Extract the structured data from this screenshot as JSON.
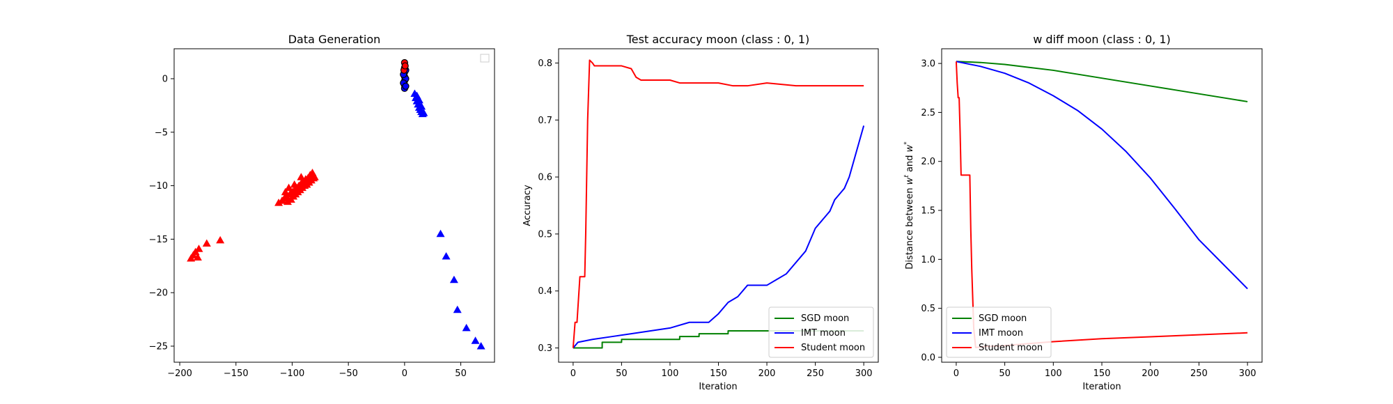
{
  "chart_data": [
    {
      "type": "scatter",
      "title": "Data Generation",
      "xlabel": "",
      "ylabel": "",
      "xlim": [
        -205,
        80
      ],
      "ylim": [
        -26.5,
        2.8
      ],
      "xticks": [
        -200,
        -150,
        -100,
        -50,
        0,
        50
      ],
      "yticks": [
        -25,
        -20,
        -15,
        -10,
        -5,
        0
      ],
      "xtick_labels": [
        "−200",
        "−150",
        "−100",
        "−50",
        "0",
        "50"
      ],
      "ytick_labels": [
        "−25",
        "−20",
        "−15",
        "−10",
        "−5",
        "0"
      ],
      "legend": "top-right (empty)",
      "series": [
        {
          "color": "#ff0000",
          "marker": "triangle",
          "points": [
            [
              -190,
              -16.8
            ],
            [
              -188,
              -16.5
            ],
            [
              -186,
              -16.2
            ],
            [
              -184,
              -16.7
            ],
            [
              -183,
              -15.9
            ],
            [
              -176,
              -15.4
            ],
            [
              -164,
              -15.1
            ],
            [
              -112,
              -11.6
            ],
            [
              -109,
              -11.4
            ],
            [
              -107,
              -11.2
            ],
            [
              -105,
              -11.0
            ],
            [
              -104,
              -11.5
            ],
            [
              -102,
              -10.8
            ],
            [
              -101,
              -11.3
            ],
            [
              -100,
              -10.6
            ],
            [
              -99,
              -11.0
            ],
            [
              -98,
              -10.4
            ],
            [
              -97,
              -10.8
            ],
            [
              -96,
              -10.2
            ],
            [
              -95,
              -10.6
            ],
            [
              -94,
              -10.0
            ],
            [
              -93,
              -10.4
            ],
            [
              -92,
              -9.8
            ],
            [
              -91,
              -10.2
            ],
            [
              -90,
              -9.6
            ],
            [
              -89,
              -10.0
            ],
            [
              -88,
              -9.4
            ],
            [
              -87,
              -9.9
            ],
            [
              -86,
              -9.3
            ],
            [
              -85,
              -9.7
            ],
            [
              -84,
              -9.0
            ],
            [
              -83,
              -9.5
            ],
            [
              -82,
              -8.8
            ],
            [
              -81,
              -9.3
            ],
            [
              -80,
              -9.2
            ],
            [
              -103,
              -10.2
            ],
            [
              -98,
              -9.9
            ],
            [
              -92,
              -9.2
            ],
            [
              -106,
              -10.6
            ]
          ]
        },
        {
          "color": "#0000ff",
          "marker": "triangle",
          "points": [
            [
              9,
              -1.4
            ],
            [
              10,
              -1.8
            ],
            [
              11,
              -2.1
            ],
            [
              12,
              -2.4
            ],
            [
              13,
              -2.7
            ],
            [
              14,
              -2.9
            ],
            [
              15,
              -3.1
            ],
            [
              16,
              -3.3
            ],
            [
              17,
              -3.2
            ],
            [
              13,
              -2.0
            ],
            [
              15,
              -2.6
            ],
            [
              11,
              -1.6
            ],
            [
              32,
              -14.5
            ],
            [
              37,
              -16.6
            ],
            [
              44,
              -18.8
            ],
            [
              47,
              -21.6
            ],
            [
              55,
              -23.3
            ],
            [
              63,
              -24.5
            ],
            [
              68,
              -25.0
            ]
          ]
        },
        {
          "color": "#0000ff",
          "marker": "circle",
          "points": [
            [
              0,
              1.0
            ],
            [
              0,
              0.6
            ],
            [
              0,
              0.2
            ],
            [
              0,
              -0.2
            ],
            [
              0,
              -0.6
            ],
            [
              0,
              -0.9
            ],
            [
              1,
              0.8
            ],
            [
              1,
              0.0
            ],
            [
              -1,
              0.4
            ],
            [
              -1,
              -0.4
            ],
            [
              1,
              -0.7
            ]
          ]
        },
        {
          "color": "#ff0000",
          "marker": "circle",
          "points": [
            [
              0,
              1.5
            ],
            [
              0,
              1.0
            ],
            [
              -0.5,
              0.8
            ],
            [
              0.5,
              1.2
            ]
          ]
        }
      ]
    },
    {
      "type": "line",
      "title": "Test accuracy moon (class : 0, 1)",
      "xlabel": "Iteration",
      "ylabel": "Accuracy",
      "xlim": [
        -15,
        315
      ],
      "ylim": [
        0.275,
        0.825
      ],
      "xticks": [
        0,
        50,
        100,
        150,
        200,
        250,
        300
      ],
      "yticks": [
        0.3,
        0.4,
        0.5,
        0.6,
        0.7,
        0.8
      ],
      "xtick_labels": [
        "0",
        "50",
        "100",
        "150",
        "200",
        "250",
        "300"
      ],
      "ytick_labels": [
        "0.3",
        "0.4",
        "0.5",
        "0.6",
        "0.7",
        "0.8"
      ],
      "legend": "bottom-right",
      "series": [
        {
          "name": "SGD moon",
          "color": "#008000",
          "x": [
            0,
            30,
            30,
            50,
            50,
            110,
            110,
            130,
            130,
            160,
            160,
            300
          ],
          "y": [
            0.3,
            0.3,
            0.31,
            0.31,
            0.315,
            0.315,
            0.32,
            0.32,
            0.325,
            0.325,
            0.33,
            0.33
          ]
        },
        {
          "name": "IMT moon",
          "color": "#0000ff",
          "x": [
            0,
            5,
            20,
            40,
            60,
            80,
            100,
            120,
            140,
            150,
            160,
            170,
            180,
            200,
            210,
            220,
            230,
            240,
            245,
            250,
            255,
            260,
            265,
            270,
            275,
            280,
            285,
            290,
            295,
            300
          ],
          "y": [
            0.3,
            0.31,
            0.315,
            0.32,
            0.325,
            0.33,
            0.335,
            0.345,
            0.345,
            0.36,
            0.38,
            0.39,
            0.41,
            0.41,
            0.42,
            0.43,
            0.45,
            0.47,
            0.49,
            0.51,
            0.52,
            0.53,
            0.54,
            0.56,
            0.57,
            0.58,
            0.6,
            0.63,
            0.66,
            0.69
          ]
        },
        {
          "name": "Student moon",
          "color": "#ff0000",
          "x": [
            0,
            2,
            4,
            7,
            12,
            13,
            15,
            17,
            20,
            22,
            50,
            60,
            65,
            70,
            100,
            110,
            150,
            165,
            180,
            200,
            230,
            300
          ],
          "y": [
            0.3,
            0.345,
            0.345,
            0.425,
            0.425,
            0.5,
            0.7,
            0.805,
            0.8,
            0.795,
            0.795,
            0.79,
            0.775,
            0.77,
            0.77,
            0.765,
            0.765,
            0.76,
            0.76,
            0.765,
            0.76,
            0.76
          ]
        }
      ]
    },
    {
      "type": "line",
      "title": "w diff moon (class : 0, 1)",
      "xlabel": "Iteration",
      "ylabel": "Distance between w^t and w^*",
      "ylabel_parts": [
        "Distance between ",
        "w",
        "t",
        " and ",
        "w",
        "*"
      ],
      "xlim": [
        -15,
        315
      ],
      "ylim": [
        -0.05,
        3.15
      ],
      "xticks": [
        0,
        50,
        100,
        150,
        200,
        250,
        300
      ],
      "yticks": [
        0.0,
        0.5,
        1.0,
        1.5,
        2.0,
        2.5,
        3.0
      ],
      "xtick_labels": [
        "0",
        "50",
        "100",
        "150",
        "200",
        "250",
        "300"
      ],
      "ytick_labels": [
        "0.0",
        "0.5",
        "1.0",
        "1.5",
        "2.0",
        "2.5",
        "3.0"
      ],
      "legend": "bottom-left",
      "series": [
        {
          "name": "SGD moon",
          "color": "#008000",
          "x": [
            0,
            25,
            50,
            75,
            100,
            125,
            150,
            175,
            200,
            225,
            250,
            275,
            300
          ],
          "y": [
            3.02,
            3.01,
            2.99,
            2.96,
            2.93,
            2.89,
            2.85,
            2.81,
            2.77,
            2.73,
            2.69,
            2.65,
            2.61
          ]
        },
        {
          "name": "IMT moon",
          "color": "#0000ff",
          "x": [
            0,
            25,
            50,
            75,
            100,
            125,
            150,
            175,
            200,
            225,
            250,
            275,
            300
          ],
          "y": [
            3.02,
            2.97,
            2.9,
            2.8,
            2.67,
            2.52,
            2.33,
            2.1,
            1.83,
            1.52,
            1.2,
            0.95,
            0.7
          ]
        },
        {
          "name": "Student moon",
          "color": "#ff0000",
          "x": [
            0,
            1,
            2,
            3,
            4,
            5,
            6,
            7,
            10,
            14,
            15,
            16,
            17,
            18,
            20,
            30,
            50,
            75,
            100,
            150,
            200,
            250,
            300
          ],
          "y": [
            3.02,
            2.8,
            2.65,
            2.65,
            2.3,
            1.86,
            1.86,
            1.86,
            1.86,
            1.86,
            1.3,
            0.9,
            0.6,
            0.3,
            0.1,
            0.11,
            0.12,
            0.14,
            0.16,
            0.19,
            0.21,
            0.23,
            0.25
          ]
        }
      ]
    }
  ]
}
